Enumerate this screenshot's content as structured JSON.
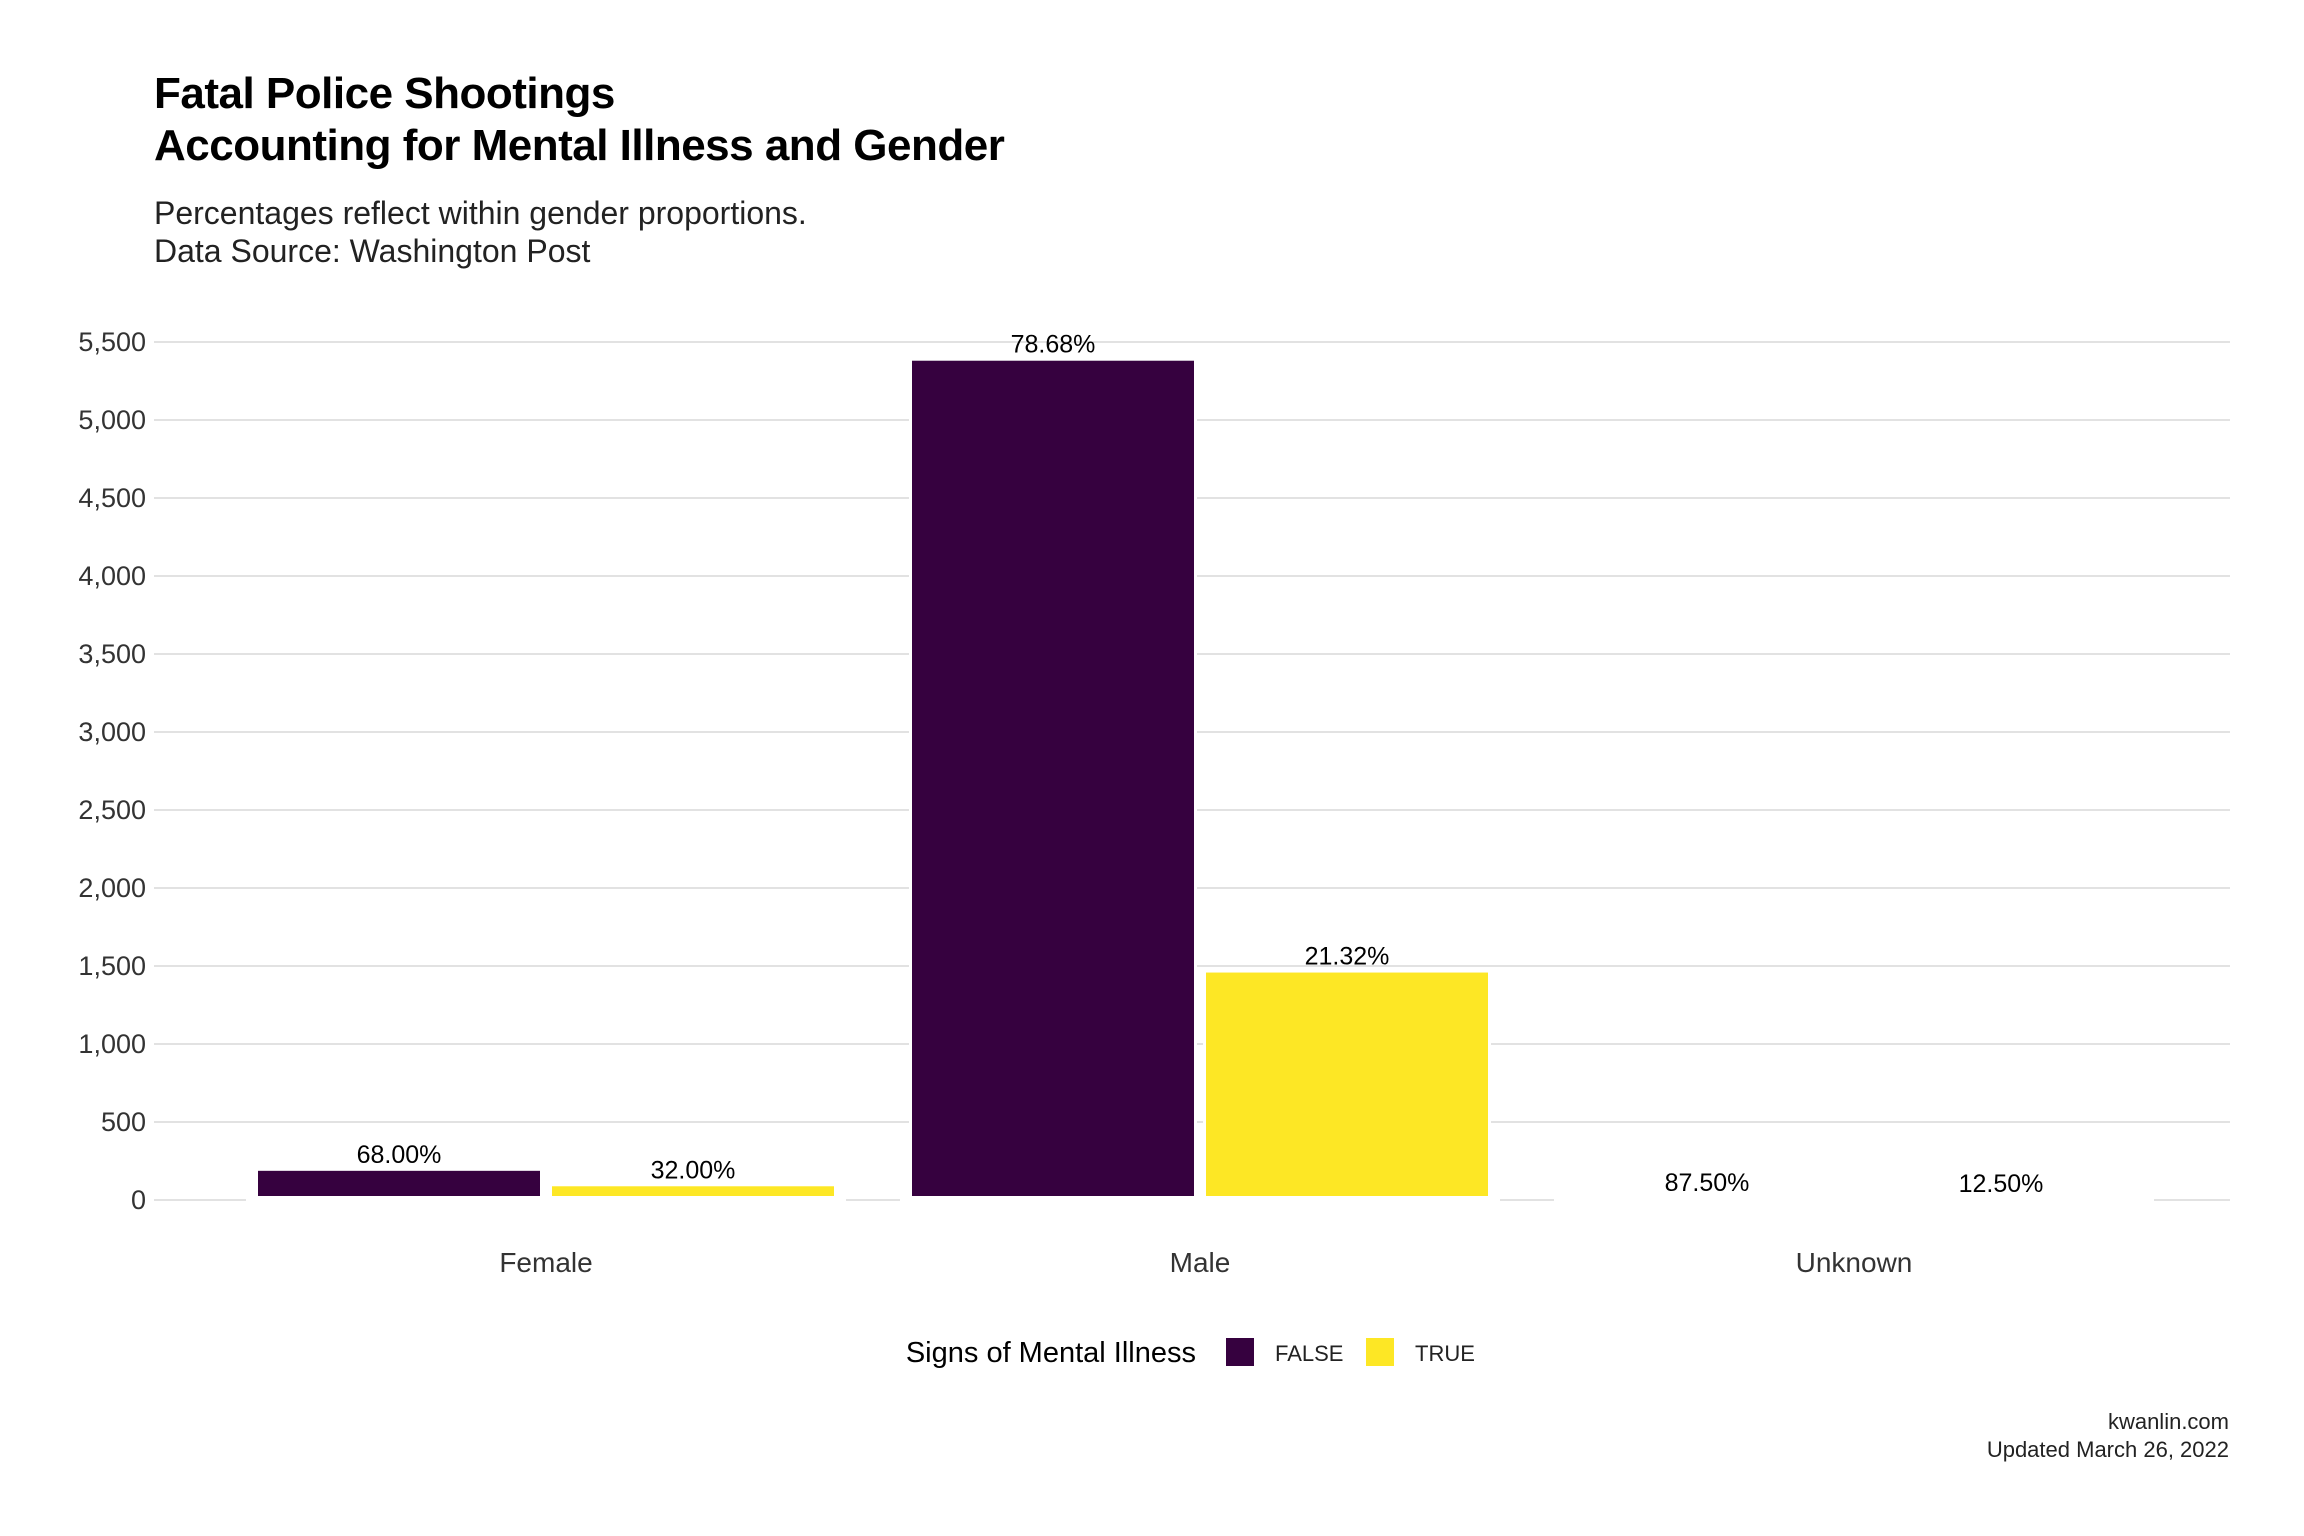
{
  "header": {
    "title_line1": "Fatal Police Shootings",
    "title_line2": "Accounting for Mental Illness and Gender",
    "subtitle_line1": "Percentages reflect within gender proportions.",
    "subtitle_line2": "Data Source: Washington Post"
  },
  "caption": {
    "line1": "kwanlin.com",
    "line2": "Updated March 26, 2022"
  },
  "chart_data": {
    "type": "bar",
    "title": "Fatal Police Shootings\nAccounting for Mental Illness and Gender",
    "subtitle": "Percentages reflect within gender proportions.\nData Source: Washington Post",
    "xlabel": "",
    "ylabel": "",
    "categories": [
      "Female",
      "Male",
      "Unknown"
    ],
    "series": [
      {
        "name": "FALSE",
        "values": [
          187,
          5380,
          7
        ],
        "labels": [
          "68.00%",
          "78.68%",
          "87.50%"
        ],
        "color": "#36013f"
      },
      {
        "name": "TRUE",
        "values": [
          88,
          1458,
          1
        ],
        "labels": [
          "32.00%",
          "21.32%",
          "12.50%"
        ],
        "color": "#fde725"
      }
    ],
    "ylim": [
      0,
      5500
    ],
    "yticks": [
      0,
      500,
      1000,
      1500,
      2000,
      2500,
      3000,
      3500,
      4000,
      4500,
      5000,
      5500
    ],
    "ytick_labels": [
      "0",
      "500",
      "1,000",
      "1,500",
      "2,000",
      "2,500",
      "3,000",
      "3,500",
      "4,000",
      "4,500",
      "5,000",
      "5,500"
    ],
    "legend": {
      "title": "Signs of Mental Illness",
      "position": "bottom",
      "items": [
        "FALSE",
        "TRUE"
      ]
    },
    "grid": true
  }
}
